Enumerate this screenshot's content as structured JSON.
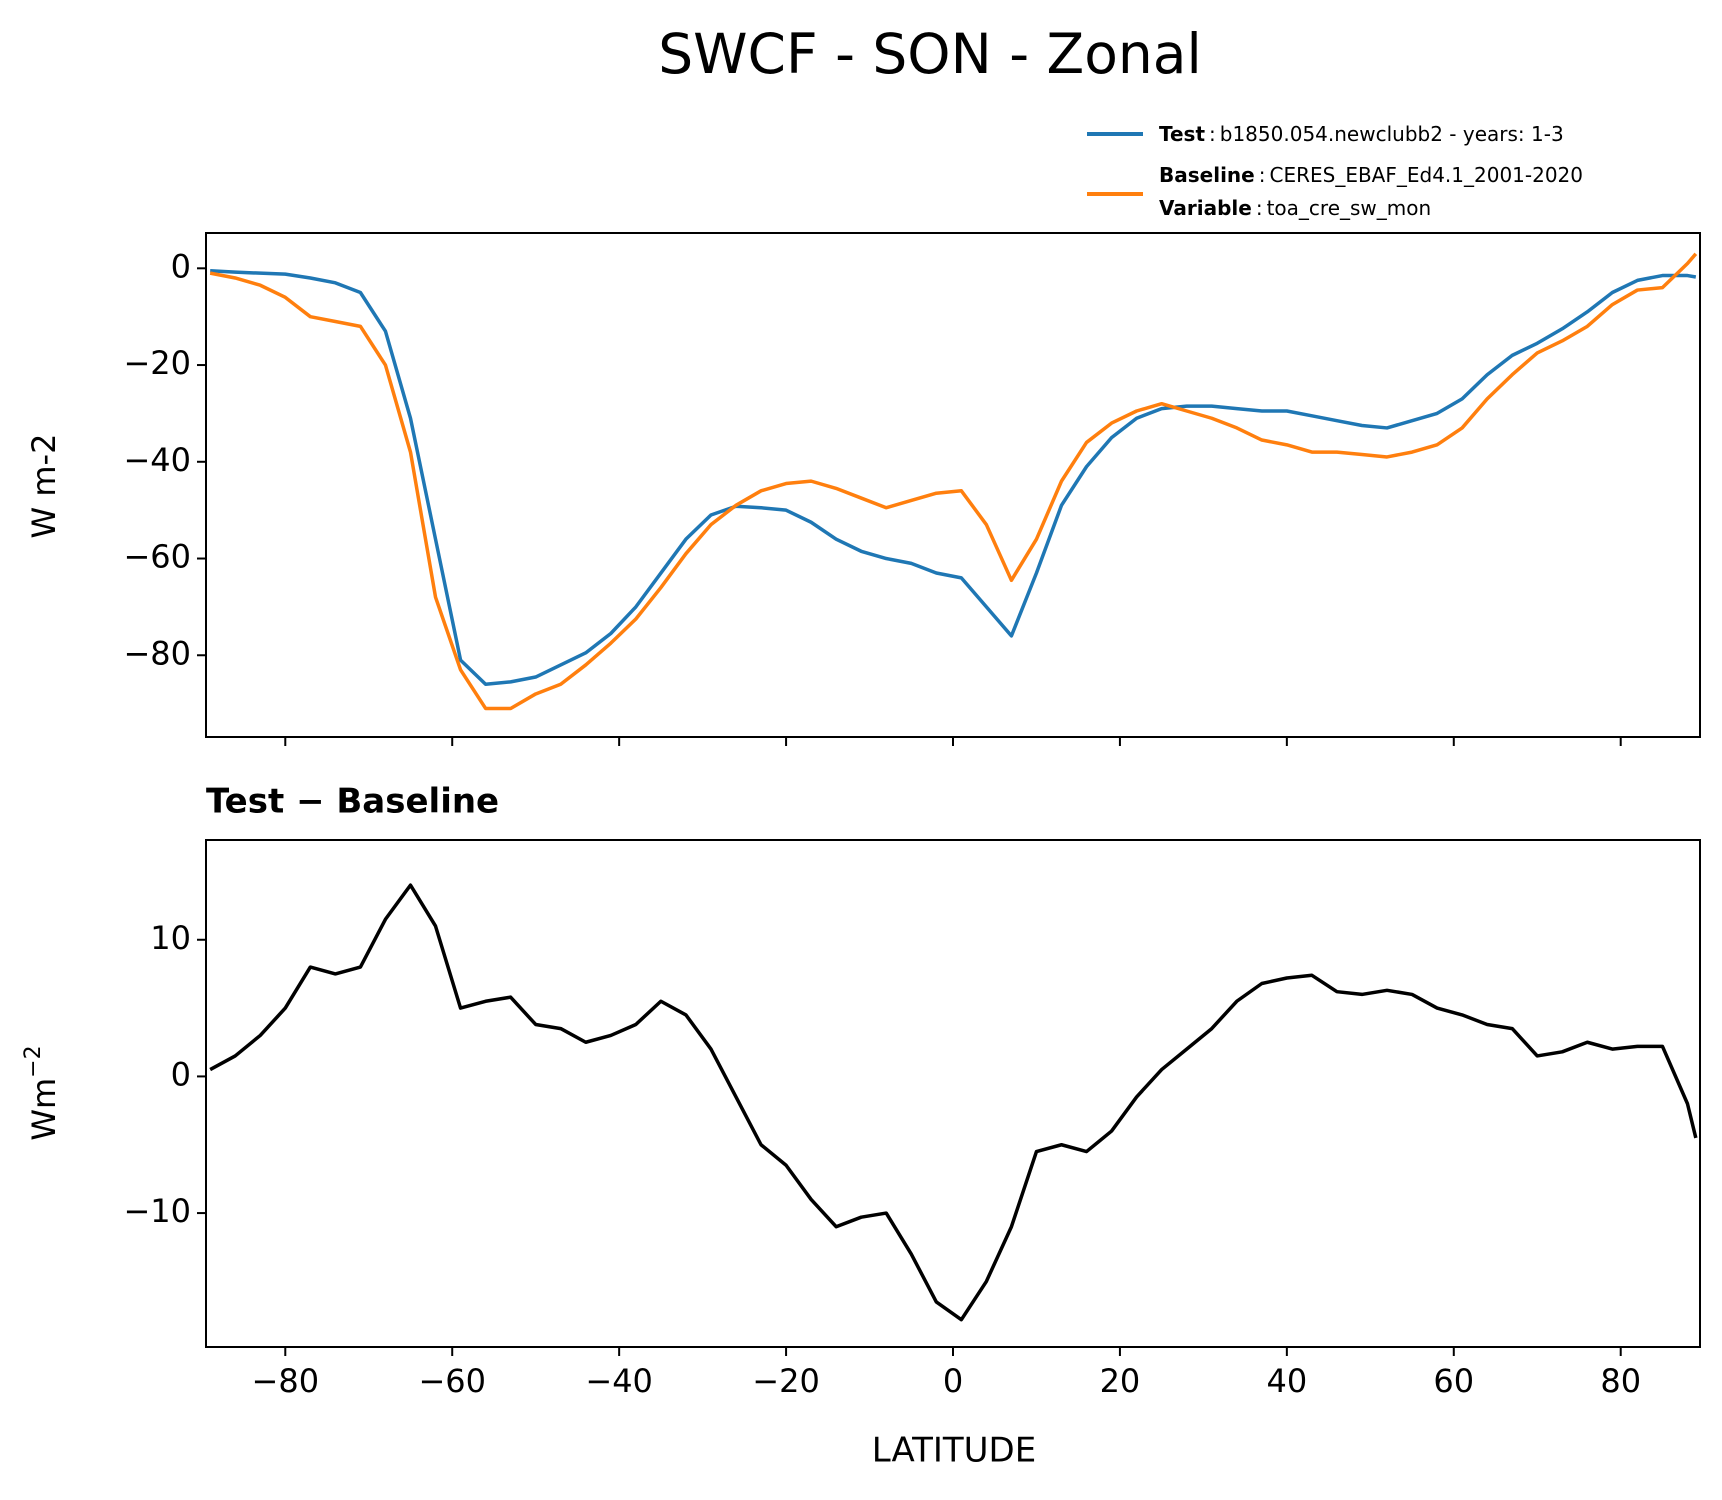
{
  "chart_data": [
    {
      "type": "line",
      "title": "SWCF - SON - Zonal",
      "ylabel": "W m-2",
      "x": [
        -89,
        -86,
        -83,
        -80,
        -77,
        -74,
        -71,
        -68,
        -65,
        -62,
        -59,
        -56,
        -53,
        -50,
        -47,
        -44,
        -41,
        -38,
        -35,
        -32,
        -29,
        -26,
        -23,
        -20,
        -17,
        -14,
        -11,
        -8,
        -5,
        -2,
        1,
        4,
        7,
        10,
        13,
        16,
        19,
        22,
        25,
        28,
        31,
        34,
        37,
        40,
        43,
        46,
        49,
        52,
        55,
        58,
        61,
        64,
        67,
        70,
        73,
        76,
        79,
        82,
        85,
        88,
        89
      ],
      "series": [
        {
          "name": "Test",
          "separator": ":",
          "description": "b1850.054.newclubb2 - years: 1-3",
          "color": "#1f77b4",
          "values": [
            -0.5,
            -0.8,
            -1,
            -1.2,
            -2,
            -3,
            -5,
            -13,
            -31,
            -56,
            -81,
            -86,
            -85.5,
            -84.5,
            -82,
            -79.5,
            -75.5,
            -70,
            -63,
            -56,
            -51,
            -49.2,
            -49.5,
            -50,
            -52.5,
            -56,
            -58.5,
            -60,
            -61,
            -63,
            -64,
            -70,
            -76,
            -63,
            -49,
            -41,
            -35,
            -31,
            -29,
            -28.5,
            -28.5,
            -29,
            -29.5,
            -29.5,
            -30.5,
            -31.5,
            -32.5,
            -33,
            -31.5,
            -30,
            -27,
            -22,
            -18,
            -15.5,
            -12.5,
            -9,
            -5,
            -2.5,
            -1.5,
            -1.5,
            -1.8
          ]
        },
        {
          "name": "Baseline",
          "separator": ":",
          "description": "CERES_EBAF_Ed4.1_2001-2020",
          "variable_label": "Variable",
          "variable": "toa_cre_sw_mon",
          "color": "#ff7f0e",
          "values": [
            -1,
            -2,
            -3.5,
            -6,
            -10,
            -11,
            -12,
            -20,
            -38,
            -68,
            -83,
            -91,
            -91,
            -88,
            -86,
            -82,
            -77.5,
            -72.5,
            -66,
            -59,
            -53,
            -49,
            -46,
            -44.5,
            -44,
            -45.5,
            -47.5,
            -49.5,
            -48,
            -46.5,
            -46,
            -53,
            -64.5,
            -56,
            -44,
            -36,
            -32,
            -29.5,
            -28,
            -29.5,
            -31,
            -33,
            -35.5,
            -36.5,
            -38,
            -38,
            -38.5,
            -39,
            -38,
            -36.5,
            -33,
            -27,
            -22,
            -17.5,
            -15,
            -12,
            -7.5,
            -4.5,
            -4,
            1,
            3
          ]
        }
      ],
      "xlim": [
        -89.5,
        89.5
      ],
      "ylim": [
        -96.9,
        7.3
      ],
      "xticks": [
        -80,
        -60,
        -40,
        -20,
        0,
        20,
        40,
        60,
        80
      ],
      "yticks": [
        {
          "value": 0,
          "label": "0"
        },
        {
          "value": -20,
          "label": "−20"
        },
        {
          "value": -40,
          "label": "−40"
        },
        {
          "value": -60,
          "label": "−60"
        },
        {
          "value": -80,
          "label": "−80"
        }
      ]
    },
    {
      "type": "line",
      "title": "Test − Baseline",
      "ylabel": "Wm",
      "ylabel_superscript": "−2",
      "xlabel": "LATITUDE",
      "x": [
        -89,
        -86,
        -83,
        -80,
        -77,
        -74,
        -71,
        -68,
        -65,
        -62,
        -59,
        -56,
        -53,
        -50,
        -47,
        -44,
        -41,
        -38,
        -35,
        -32,
        -29,
        -26,
        -23,
        -20,
        -17,
        -14,
        -11,
        -8,
        -5,
        -2,
        1,
        4,
        7,
        10,
        13,
        16,
        19,
        22,
        25,
        28,
        31,
        34,
        37,
        40,
        43,
        46,
        49,
        52,
        55,
        58,
        61,
        64,
        67,
        70,
        73,
        76,
        79,
        82,
        85,
        88,
        89
      ],
      "series": [
        {
          "color": "#000000",
          "values": [
            0.5,
            1.5,
            3,
            5,
            8,
            7.5,
            8,
            11.5,
            14,
            11,
            5,
            5.5,
            5.8,
            3.8,
            3.5,
            2.5,
            3,
            3.8,
            5.5,
            4.5,
            2,
            -1.5,
            -5,
            -6.5,
            -9,
            -11,
            -10.3,
            -10,
            -13,
            -16.5,
            -17.8,
            -15,
            -11,
            -5.5,
            -5,
            -5.5,
            -4,
            -1.5,
            0.5,
            2,
            3.5,
            5.5,
            6.8,
            7.2,
            7.4,
            6.2,
            6,
            6.3,
            6,
            5,
            4.5,
            3.8,
            3.5,
            1.5,
            1.8,
            2.5,
            2,
            2.2,
            2.2,
            -2,
            -4.5
          ]
        }
      ],
      "xlim": [
        -89.5,
        89.5
      ],
      "ylim": [
        -19.8,
        17.3
      ],
      "xticks": [
        {
          "value": -80,
          "label": "−80"
        },
        {
          "value": -60,
          "label": "−60"
        },
        {
          "value": -40,
          "label": "−40"
        },
        {
          "value": -20,
          "label": "−20"
        },
        0,
        20,
        40,
        60,
        80
      ],
      "yticks": [
        {
          "value": -10,
          "label": "−10"
        },
        0,
        10
      ]
    }
  ]
}
